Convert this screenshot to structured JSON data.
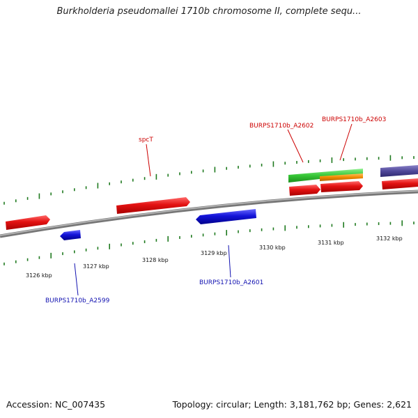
{
  "title": "Burkholderia pseudomallei 1710b chromosome II, complete sequ...",
  "footer": {
    "accession": "Accession: NC_007435",
    "summary": "Topology: circular; Length: 3,181,762 bp; Genes: 2,621"
  },
  "colors": {
    "backbone": "#8a8a8a",
    "tick": "#1f7a1f",
    "gene_forward": "#e31212",
    "gene_reverse": "#1414d9",
    "green_feature": "#36c636",
    "orange_feature": "#f08a00",
    "purple_feature": "#50489a",
    "label_forward": "#cc0000",
    "label_reverse": "#1010b0"
  },
  "axis": {
    "unit": "kbp",
    "ticks": [
      "3126 kbp",
      "3127 kbp",
      "3128 kbp",
      "3129 kbp",
      "3130 kbp",
      "3131 kbp",
      "3132 kbp"
    ]
  },
  "gene_labels": {
    "forward": [
      "spcT",
      "BURPS1710b_A2602",
      "BURPS1710b_A2603"
    ],
    "reverse": [
      "BURPS1710b_A2599",
      "BURPS1710b_A2601"
    ]
  }
}
